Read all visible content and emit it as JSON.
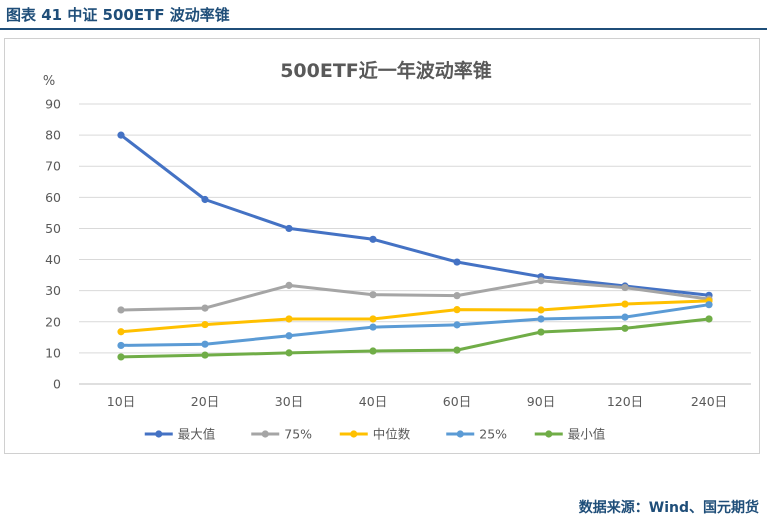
{
  "figure": {
    "caption": "图表 41  中证 500ETF 波动率锥",
    "source": "数据来源：Wind、国元期货"
  },
  "chart_data": {
    "type": "line",
    "title": "500ETF近一年波动率锥",
    "ylabel": "%",
    "xlabel": "",
    "ylim": [
      0,
      90
    ],
    "yticks": [
      "0",
      "10",
      "20",
      "30",
      "40",
      "50",
      "60",
      "70",
      "80",
      "90"
    ],
    "categories": [
      "10日",
      "20日",
      "30日",
      "40日",
      "60日",
      "90日",
      "120日",
      "240日"
    ],
    "grid": true,
    "legend": "bottom",
    "series": [
      {
        "name": "最大值",
        "color": "#4472c4",
        "values": [
          80.0,
          59.3,
          50.0,
          46.5,
          39.2,
          34.5,
          31.5,
          28.5
        ]
      },
      {
        "name": "75%",
        "color": "#a5a5a5",
        "values": [
          23.8,
          24.4,
          31.7,
          28.7,
          28.4,
          33.2,
          31.0,
          27.3
        ]
      },
      {
        "name": "中位数",
        "color": "#ffc000",
        "values": [
          16.8,
          19.1,
          20.9,
          20.9,
          23.9,
          23.8,
          25.7,
          26.7
        ]
      },
      {
        "name": "25%",
        "color": "#5b9bd5",
        "values": [
          12.4,
          12.8,
          15.5,
          18.3,
          19.0,
          20.9,
          21.5,
          25.5
        ]
      },
      {
        "name": "最小值",
        "color": "#70ad47",
        "values": [
          8.7,
          9.3,
          10.0,
          10.6,
          10.9,
          16.7,
          17.9,
          20.9
        ]
      }
    ]
  }
}
